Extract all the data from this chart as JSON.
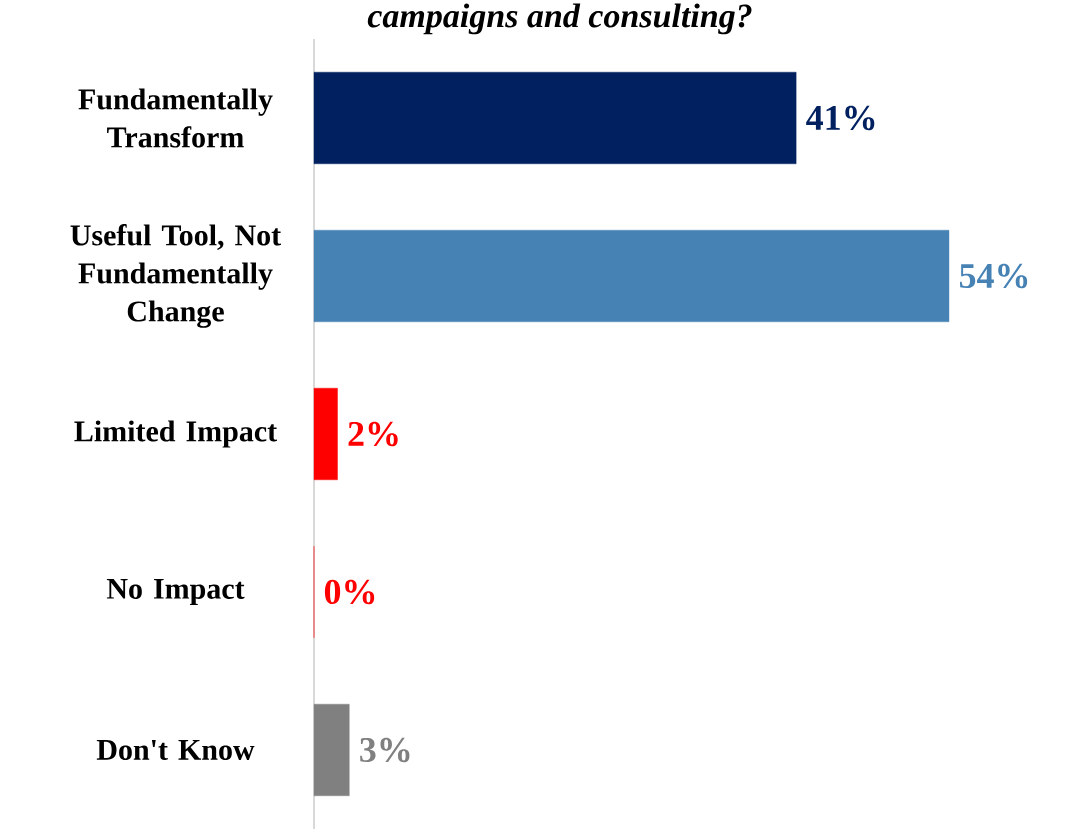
{
  "chart_data": {
    "type": "bar",
    "orientation": "horizontal",
    "title": "campaigns and consulting?",
    "categories": [
      "Fundamentally Transform",
      "Useful Tool, Not Fundamentally Change",
      "Limited Impact",
      "No Impact",
      "Don't Know"
    ],
    "values": [
      41,
      54,
      2,
      0,
      3
    ],
    "colors": [
      "#002060",
      "#4682b4",
      "#ff0000",
      "#ff0000",
      "#808080"
    ],
    "data_labels": true,
    "value_labels": [
      "41%",
      "54%",
      "2%",
      "0%",
      "3%"
    ],
    "tick_labels": "y"
  }
}
